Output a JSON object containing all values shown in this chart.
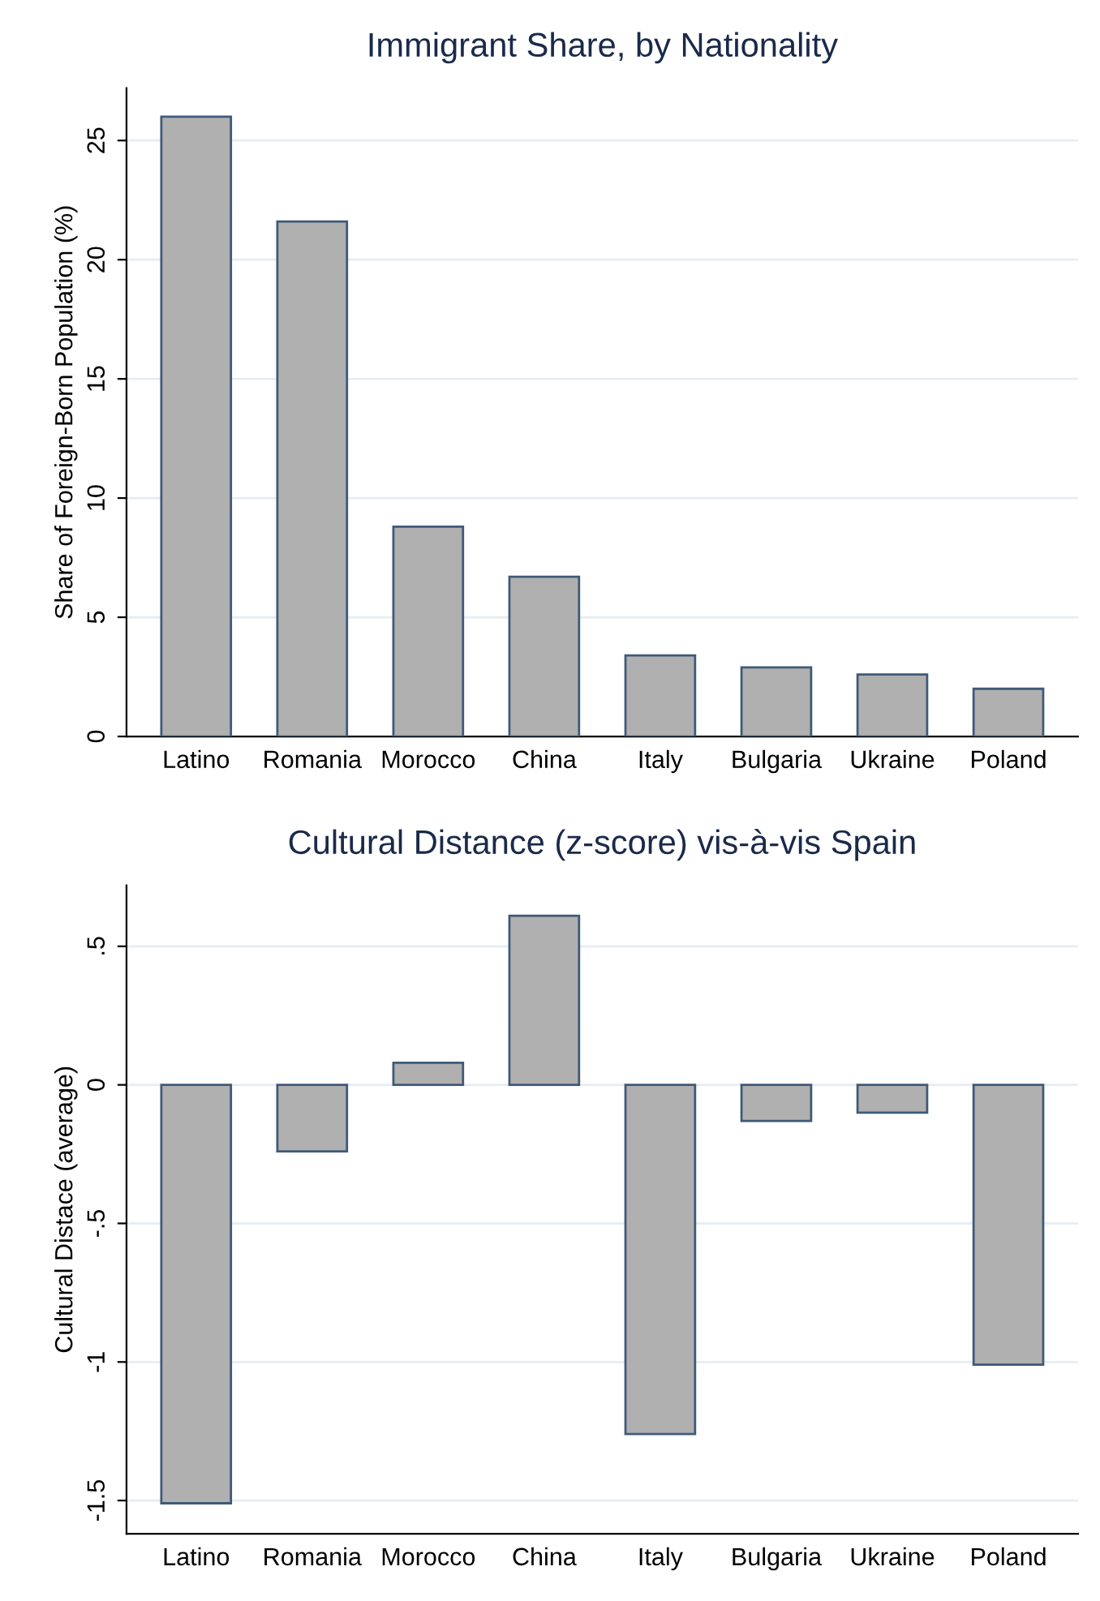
{
  "chart_data": [
    {
      "type": "bar",
      "title": "Immigrant Share, by Nationality",
      "ylabel": "Share of Foreign-Born Population (%)",
      "categories": [
        "Latino",
        "Romania",
        "Morocco",
        "China",
        "Italy",
        "Bulgaria",
        "Ukraine",
        "Poland"
      ],
      "values": [
        26.0,
        21.6,
        8.8,
        6.7,
        3.4,
        2.9,
        2.6,
        2.0
      ],
      "color": "#b0b0b0",
      "ylim": [
        0,
        27.2
      ],
      "yticks": [
        0,
        5,
        10,
        15,
        20,
        25
      ],
      "grid": "y"
    },
    {
      "type": "bar",
      "title": "Cultural Distance (z-score) vis-à-vis Spain",
      "ylabel": "Cultural Distace (average)",
      "categories": [
        "Latino",
        "Romania",
        "Morocco",
        "China",
        "Italy",
        "Bulgaria",
        "Ukraine",
        "Poland"
      ],
      "values": [
        -1.51,
        -0.24,
        0.08,
        0.61,
        -1.26,
        -0.13,
        -0.1,
        -1.01
      ],
      "color": "#b0b0b0",
      "ylim": [
        -1.62,
        0.72
      ],
      "yticks": [
        {
          "value": -1.5,
          "label": "-1.5"
        },
        {
          "value": -1,
          "label": "-1"
        },
        {
          "value": -0.5,
          "label": "-.5"
        },
        {
          "value": 0,
          "label": "0"
        },
        {
          "value": 0.5,
          "label": ".5"
        }
      ],
      "grid": "y"
    }
  ]
}
